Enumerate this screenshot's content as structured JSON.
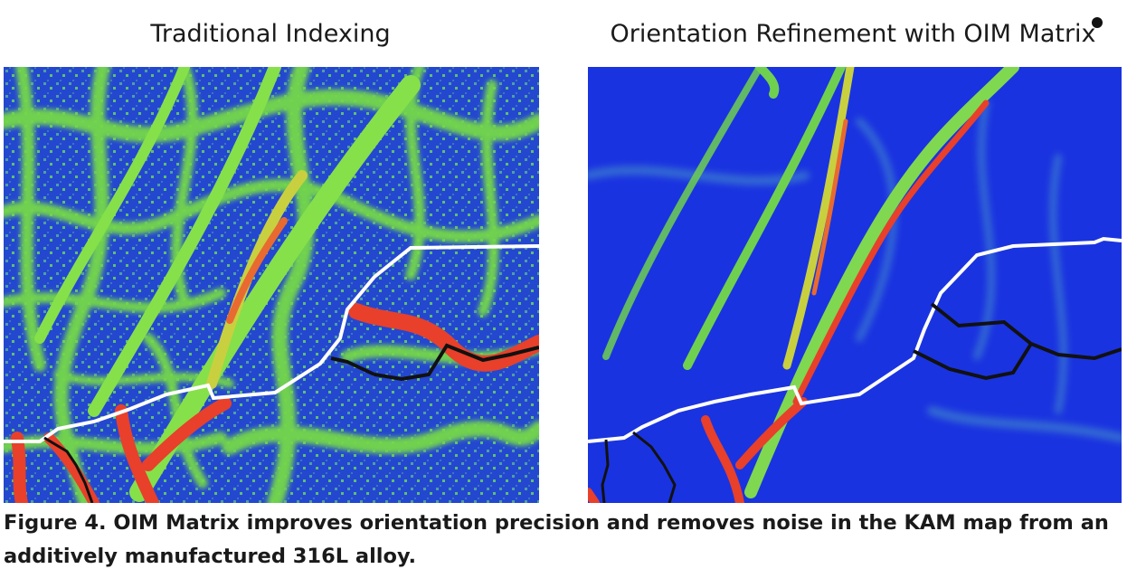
{
  "panels": [
    {
      "title": "Traditional Indexing"
    },
    {
      "title": "Orientation Refinement with OIM Matrix"
    }
  ],
  "caption": "Figure 4. OIM Matrix improves orientation precision and removes noise in the KAM map from an additively manufactured 316L alloy.",
  "colors": {
    "kam_low": "#1f3fd6",
    "kam_mid": "#7fe040",
    "kam_high": "#e8402a",
    "kam_yellow": "#e8e040",
    "grain_boundary_high": "#ffffff",
    "grain_boundary_low": "#111111"
  }
}
